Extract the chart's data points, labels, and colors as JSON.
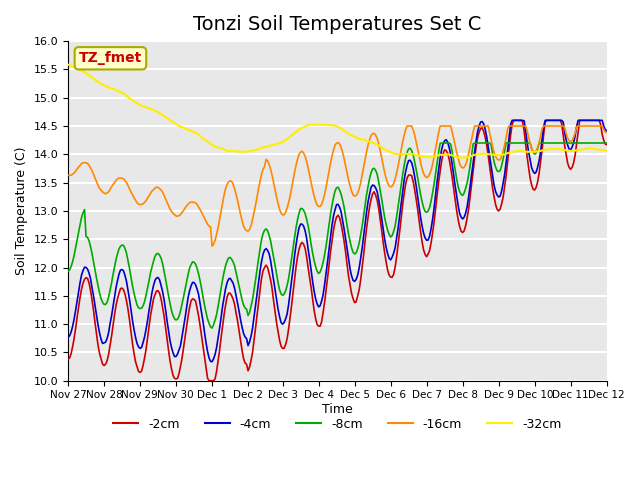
{
  "title": "Tonzi Soil Temperatures Set C",
  "xlabel": "Time",
  "ylabel": "Soil Temperature (C)",
  "ylim": [
    10.0,
    16.0
  ],
  "yticks": [
    10.0,
    10.5,
    11.0,
    11.5,
    12.0,
    12.5,
    13.0,
    13.5,
    14.0,
    14.5,
    15.0,
    15.5,
    16.0
  ],
  "xtick_labels": [
    "Nov 27",
    "Nov 28",
    "Nov 29",
    "Nov 30",
    "Dec 1",
    "Dec 2",
    "Dec 3",
    "Dec 4",
    "Dec 5",
    "Dec 6",
    "Dec 7",
    "Dec 8",
    "Dec 9",
    "Dec 10",
    "Dec 11",
    "Dec 12"
  ],
  "colors": {
    "-2cm": "#cc0000",
    "-4cm": "#0000cc",
    "-8cm": "#00aa00",
    "-16cm": "#ff8800",
    "-32cm": "#ffee00"
  },
  "legend_labels": [
    "-2cm",
    "-4cm",
    "-8cm",
    "-16cm",
    "-32cm"
  ],
  "annotation_text": "TZ_fmet",
  "annotation_color": "#cc0000",
  "annotation_bg": "#ffffcc",
  "annotation_border": "#aaaa00",
  "bg_color": "#e8e8e8",
  "grid_color": "#ffffff",
  "title_fontsize": 14
}
